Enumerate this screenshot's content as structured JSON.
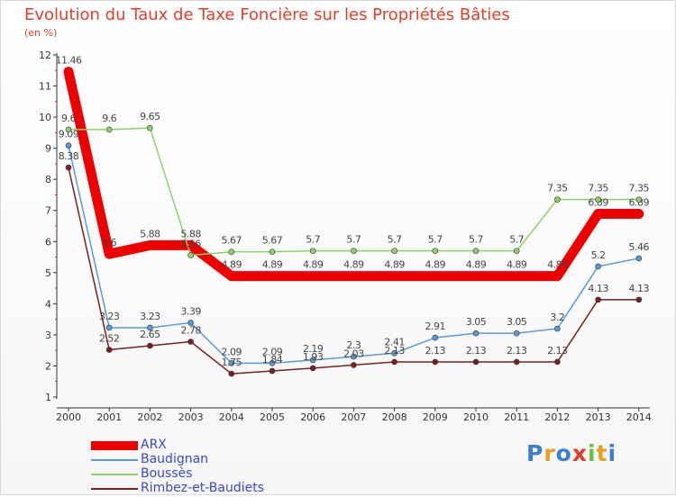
{
  "chart_data": {
    "type": "line",
    "title": "Evolution du Taux de Taxe Foncière sur les Propriétés Bâties",
    "subtitle": "(en %)",
    "xlabel": "",
    "ylabel": "",
    "ylim": [
      1,
      12
    ],
    "yticks": [
      1,
      2,
      3,
      4,
      5,
      6,
      7,
      8,
      9,
      10,
      11,
      12
    ],
    "grid": false,
    "x": [
      "2000",
      "2001",
      "2002",
      "2003",
      "2004",
      "2005",
      "2006",
      "2007",
      "2008",
      "2009",
      "2010",
      "2011",
      "2012",
      "2013",
      "2014"
    ],
    "series": [
      {
        "name": "ARX",
        "color": "#ee0000",
        "values": [
          11.46,
          5.6,
          5.88,
          5.88,
          4.89,
          4.89,
          4.89,
          4.89,
          4.89,
          4.89,
          4.89,
          4.89,
          4.89,
          6.89,
          6.89
        ],
        "labels": [
          "11.46",
          "5.6",
          "5.88",
          "5.88",
          "4.89",
          "4.89",
          "4.89",
          "4.89",
          "4.89",
          "4.89",
          "4.89",
          "4.89",
          "4.89",
          "6.89",
          "6.89"
        ]
      },
      {
        "name": "Baudignan",
        "color": "#5b9bd5",
        "values": [
          9.09,
          3.23,
          3.23,
          3.39,
          2.09,
          2.09,
          2.19,
          2.3,
          2.41,
          2.91,
          3.05,
          3.05,
          3.2,
          5.2,
          5.46
        ],
        "labels": [
          "9.09",
          "3.23",
          "3.23",
          "3.39",
          "2.09",
          "2.09",
          "2.19",
          "2.3",
          "2.41",
          "2.91",
          "3.05",
          "3.05",
          "3.2",
          "5.2",
          "5.46"
        ]
      },
      {
        "name": "Boussès",
        "color": "#8fd16b",
        "values": [
          9.6,
          9.6,
          9.65,
          5.56,
          5.67,
          5.67,
          5.7,
          5.7,
          5.7,
          5.7,
          5.7,
          5.7,
          7.35,
          7.35,
          7.35
        ],
        "labels": [
          "9.6",
          "9.6",
          "9.65",
          "5.56",
          "5.67",
          "5.67",
          "5.7",
          "5.7",
          "5.7",
          "5.7",
          "5.7",
          "5.7",
          "7.35",
          "7.35",
          "7.35"
        ]
      },
      {
        "name": "Rimbez-et-Baudiets",
        "color": "#7a1f1f",
        "values": [
          8.38,
          2.52,
          2.65,
          2.78,
          1.75,
          1.84,
          1.93,
          2.03,
          2.13,
          2.13,
          2.13,
          2.13,
          2.13,
          4.13,
          4.13
        ],
        "labels": [
          "8.38",
          "2.52",
          "2.65",
          "2.78",
          "1.75",
          "1.84",
          "1.93",
          "2.03",
          "2.13",
          "2.13",
          "2.13",
          "2.13",
          "2.13",
          "4.13",
          "4.13"
        ]
      }
    ]
  },
  "brand": {
    "letters": [
      "P",
      "r",
      "o",
      "x",
      "i",
      "t",
      "i"
    ],
    "colors": [
      "#3a7fd0",
      "#e8a020",
      "#3a7fd0",
      "#e23a2a",
      "#6cc040",
      "#e8a020",
      "#3a7fd0"
    ]
  },
  "colors": {
    "title": "#e0402a",
    "axis_text": "#333333",
    "legend_text": "#3b48cc"
  }
}
